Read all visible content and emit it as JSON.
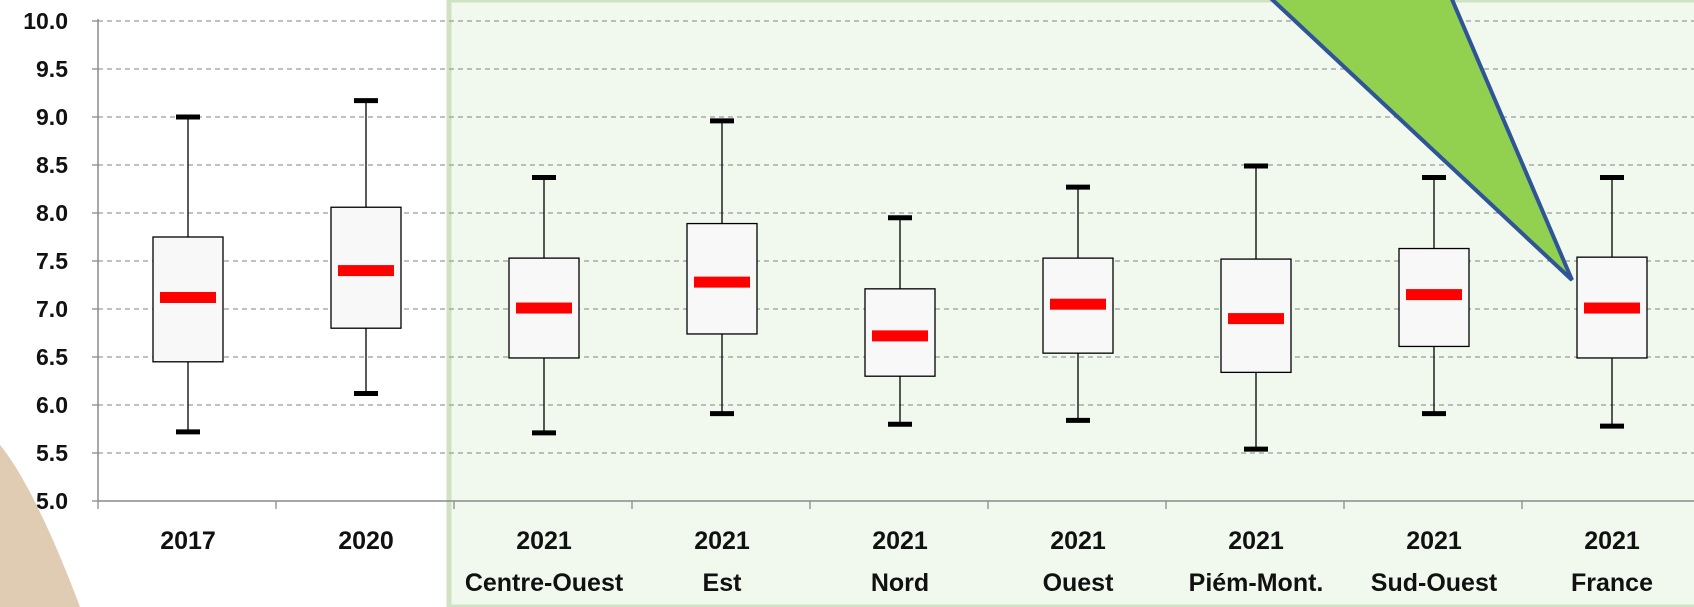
{
  "colors": {
    "highlight_bg": "#f1f9ef",
    "highlight_border": "#cfe3c2",
    "box_fill": "#f8f8f8",
    "median": "#ff0000",
    "whisker_cap": "#000000",
    "callout_fill": "#92d050",
    "callout_stroke": "#2f5597"
  },
  "chart_data": {
    "type": "boxplot",
    "ylim": [
      5.0,
      10.0
    ],
    "yticks": [
      "10.0",
      "9.5",
      "9.0",
      "8.5",
      "8.0",
      "7.5",
      "7.0",
      "6.5",
      "6.0",
      "5.5",
      "5.0"
    ],
    "ytick_values": [
      10.0,
      9.5,
      9.0,
      8.5,
      8.0,
      7.5,
      7.0,
      6.5,
      6.0,
      5.5,
      5.0
    ],
    "grid": true,
    "highlighted_categories": [
      2,
      3,
      4,
      5,
      6,
      7,
      8
    ],
    "categories": [
      {
        "line1": "2017",
        "line2": ""
      },
      {
        "line1": "2020",
        "line2": ""
      },
      {
        "line1": "2021",
        "line2": "Centre-Ouest"
      },
      {
        "line1": "2021",
        "line2": "Est"
      },
      {
        "line1": "2021",
        "line2": "Nord"
      },
      {
        "line1": "2021",
        "line2": "Ouest"
      },
      {
        "line1": "2021",
        "line2": "Piém-Mont."
      },
      {
        "line1": "2021",
        "line2": "Sud-Ouest"
      },
      {
        "line1": "2021",
        "line2": "France"
      }
    ],
    "boxes": [
      {
        "min": 5.72,
        "q1": 6.45,
        "median": 7.12,
        "q3": 7.75,
        "max": 9.0
      },
      {
        "min": 6.12,
        "q1": 6.8,
        "median": 7.4,
        "q3": 8.06,
        "max": 9.17
      },
      {
        "min": 5.71,
        "q1": 6.49,
        "median": 7.01,
        "q3": 7.53,
        "max": 8.37
      },
      {
        "min": 5.91,
        "q1": 6.74,
        "median": 7.28,
        "q3": 7.89,
        "max": 8.96
      },
      {
        "min": 5.8,
        "q1": 6.3,
        "median": 6.72,
        "q3": 7.21,
        "max": 7.95
      },
      {
        "min": 5.84,
        "q1": 6.54,
        "median": 7.05,
        "q3": 7.53,
        "max": 8.27
      },
      {
        "min": 5.54,
        "q1": 6.34,
        "median": 6.9,
        "q3": 7.52,
        "max": 8.49
      },
      {
        "min": 5.91,
        "q1": 6.61,
        "median": 7.15,
        "q3": 7.63,
        "max": 8.37
      },
      {
        "min": 5.78,
        "q1": 6.49,
        "median": 7.01,
        "q3": 7.54,
        "max": 8.37
      }
    ]
  }
}
